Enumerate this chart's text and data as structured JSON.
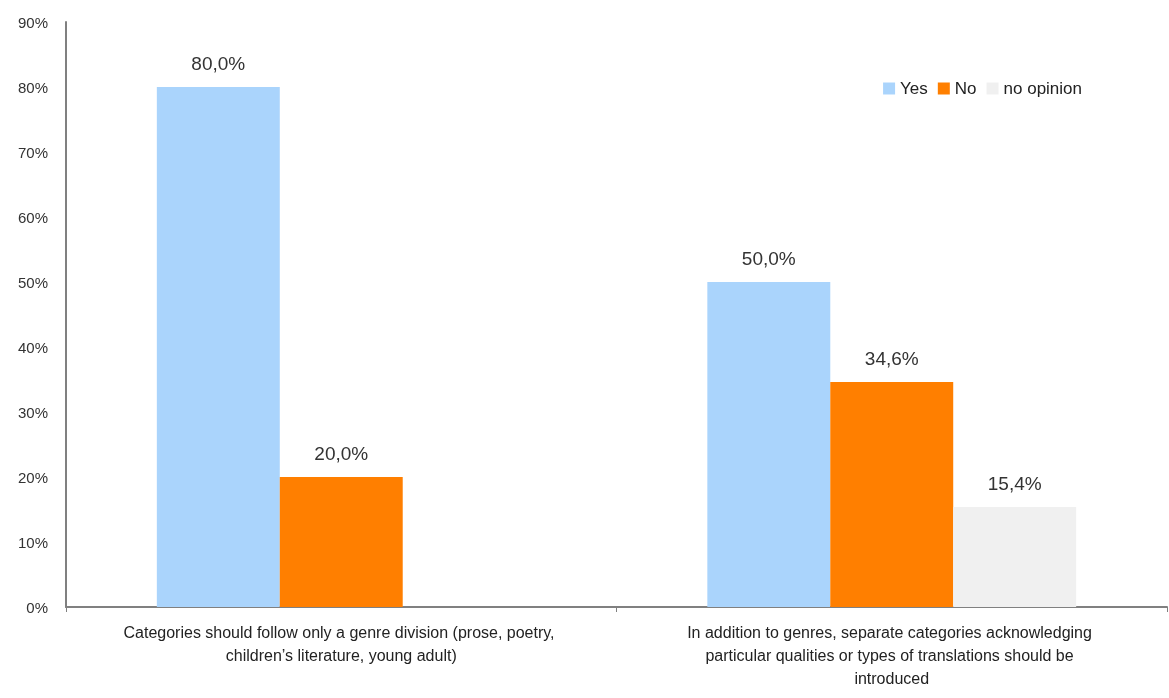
{
  "chart_data": {
    "type": "bar",
    "categories": [
      "Categories should follow only a genre division (prose, poetry, children’s literature, young adult)",
      "In addition to genres, separate categories acknowledging particular qualities or types of translations should be introduced"
    ],
    "series": [
      {
        "name": "Yes",
        "color": "#aad4fc",
        "values": [
          80.0,
          50.0
        ],
        "value_labels": [
          "80,0%",
          "50,0%"
        ]
      },
      {
        "name": "No",
        "color": "#ff7f00",
        "values": [
          20.0,
          34.6
        ],
        "value_labels": [
          "20,0%",
          "34,6%"
        ]
      },
      {
        "name": "no opinion",
        "color": "#f0f0f0",
        "values": [
          null,
          15.4
        ],
        "value_labels": [
          null,
          "15,4%"
        ]
      }
    ],
    "ylim": [
      0,
      90
    ],
    "yticks": [
      {
        "value": 0,
        "label": "0%"
      },
      {
        "value": 10,
        "label": "10%"
      },
      {
        "value": 20,
        "label": "20%"
      },
      {
        "value": 30,
        "label": "30%"
      },
      {
        "value": 40,
        "label": "40%"
      },
      {
        "value": 50,
        "label": "50%"
      },
      {
        "value": 60,
        "label": "60%"
      },
      {
        "value": 70,
        "label": "70%"
      },
      {
        "value": 80,
        "label": "80%"
      },
      {
        "value": 90,
        "label": "90%"
      }
    ],
    "legend": "top right"
  }
}
